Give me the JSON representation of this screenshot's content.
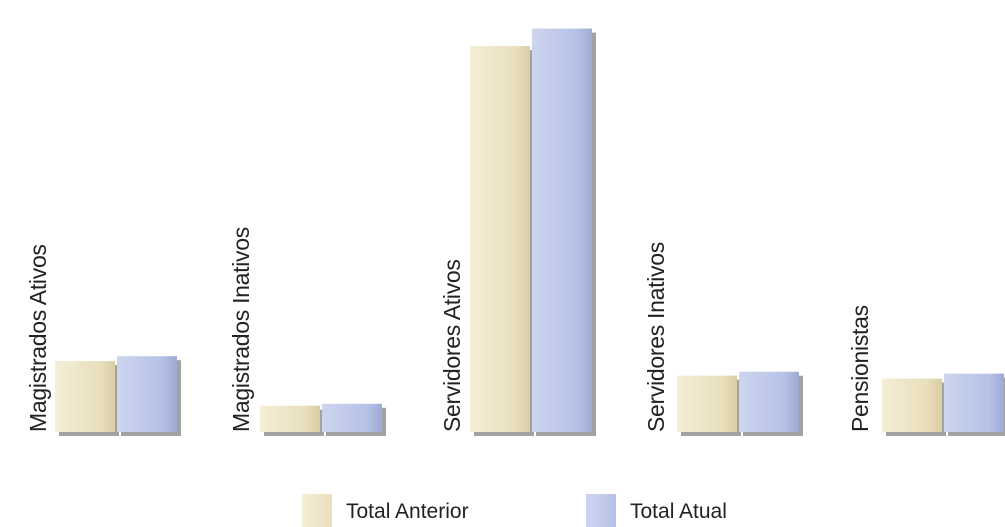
{
  "chart_data": {
    "type": "bar",
    "categories": [
      "Magistrados Ativos",
      "Magistrados Inativos",
      "Servidores Ativos",
      "Servidores Inativos",
      "Pensionistas"
    ],
    "series": [
      {
        "name": "Total Anterior",
        "color": "#ece3c3",
        "values": [
          73,
          27,
          397,
          58,
          55
        ]
      },
      {
        "name": "Total Atual",
        "color": "#b8c3e6",
        "values": [
          78,
          29,
          415,
          62,
          60
        ]
      }
    ],
    "ylim": [
      0,
      430
    ],
    "grid": false,
    "legend_placement": "bottom"
  }
}
